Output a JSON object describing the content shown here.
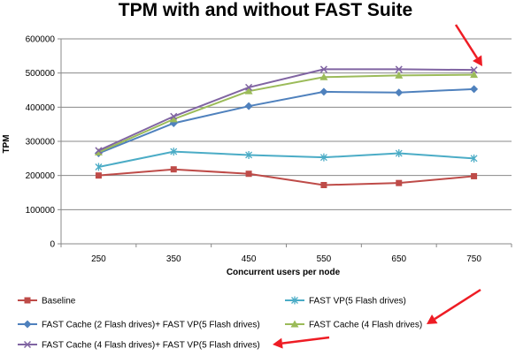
{
  "chart_data": {
    "type": "line",
    "title": "TPM with and without FAST Suite",
    "xlabel": "Concurrent users per node",
    "ylabel": "TPM",
    "categories": [
      "250",
      "350",
      "450",
      "550",
      "650",
      "750"
    ],
    "ylim": [
      0,
      600000
    ],
    "yticks": [
      "0",
      "100000",
      "200000",
      "300000",
      "400000",
      "500000",
      "600000"
    ],
    "grid": true,
    "legend_position": "bottom",
    "series": [
      {
        "name": "Baseline",
        "color": "#be4b48",
        "marker": "square",
        "values": [
          200000,
          218000,
          205000,
          172000,
          178000,
          198000
        ]
      },
      {
        "name": "FAST VP(5 Flash drives)",
        "color": "#4bacc6",
        "marker": "asterisk",
        "values": [
          225000,
          270000,
          260000,
          253000,
          265000,
          250000
        ]
      },
      {
        "name": "FAST Cache (2 Flash drives)+ FAST VP(5 Flash drives)",
        "color": "#4f81bd",
        "marker": "diamond",
        "values": [
          265000,
          353000,
          403000,
          445000,
          443000,
          453000
        ]
      },
      {
        "name": "FAST Cache (4 Flash drives)",
        "color": "#9bbb59",
        "marker": "triangle",
        "values": [
          268000,
          365000,
          447000,
          488000,
          493000,
          495000
        ]
      },
      {
        "name": "FAST Cache (4 Flash drives)+ FAST VP(5 Flash drives)",
        "color": "#8064a2",
        "marker": "x",
        "values": [
          273000,
          373000,
          458000,
          511000,
          511000,
          509000
        ]
      }
    ]
  },
  "colors": {
    "arrow": "#ee1c24",
    "grid": "#888888",
    "axis": "#888888"
  }
}
